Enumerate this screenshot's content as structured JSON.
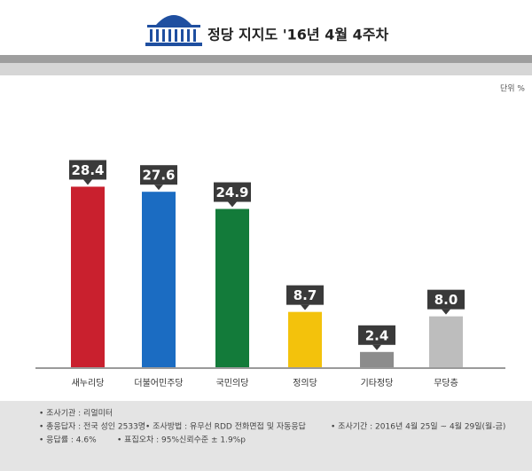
{
  "chart_data": {
    "type": "bar",
    "title": "정당 지지도 '16년 4월 4주차",
    "unit": "단위 %",
    "categories": [
      "새누리당",
      "더불어민주당",
      "국민의당",
      "정의당",
      "기타정당",
      "무당층"
    ],
    "values": [
      28.4,
      27.6,
      24.9,
      8.7,
      2.4,
      8.0
    ],
    "value_labels": [
      "28.4",
      "27.6",
      "24.9",
      "8.7",
      "2.4",
      "8.0"
    ],
    "colors": [
      "#c9202e",
      "#1b6cc2",
      "#137b3a",
      "#f3c20c",
      "#8c8c8c",
      "#bdbdbd"
    ],
    "ylim": [
      0,
      30
    ]
  },
  "notes": [
    [
      "• 조사기관 : 리얼미터"
    ],
    [
      "• 총응답자 : 전국 성인 2533명",
      "• 조사방법 : 유무선 RDD 전화면접 및 자동응답",
      "• 조사기간 : 2016년 4월 25일 ~ 4월 29일(월-금)"
    ],
    [
      "• 응답률 : 4.6%",
      "• 표집오차 : 95%신뢰수준 ± 1.9%p"
    ]
  ]
}
